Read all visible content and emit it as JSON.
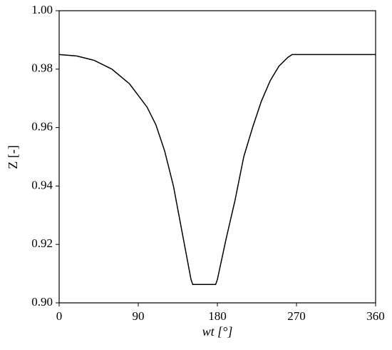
{
  "chart_data": {
    "type": "line",
    "xlabel": "wt [°]",
    "ylabel": "Z [-]",
    "x": [
      0,
      20,
      40,
      60,
      80,
      100,
      110,
      120,
      130,
      140,
      150,
      152,
      178,
      180,
      190,
      200,
      210,
      220,
      230,
      240,
      250,
      260,
      265,
      360
    ],
    "series": [
      {
        "color": "#000000",
        "values": [
          0.985,
          0.9845,
          0.983,
          0.98,
          0.975,
          0.967,
          0.961,
          0.952,
          0.94,
          0.924,
          0.908,
          0.9063,
          0.9063,
          0.908,
          0.922,
          0.935,
          0.95,
          0.96,
          0.969,
          0.976,
          0.981,
          0.984,
          0.985,
          0.985
        ]
      }
    ],
    "xlim": [
      0,
      360
    ],
    "xticks": [
      0,
      90,
      180,
      270,
      360
    ],
    "ylim": [
      0.9,
      1.0
    ],
    "yticks": [
      {
        "value": 0.9,
        "label": "0.90"
      },
      {
        "value": 0.92,
        "label": "0.92"
      },
      {
        "value": 0.94,
        "label": "0.94"
      },
      {
        "value": 0.96,
        "label": "0.96"
      },
      {
        "value": 0.98,
        "label": "0.98"
      },
      {
        "value": 1.0,
        "label": "1.00"
      }
    ],
    "grid": false
  }
}
